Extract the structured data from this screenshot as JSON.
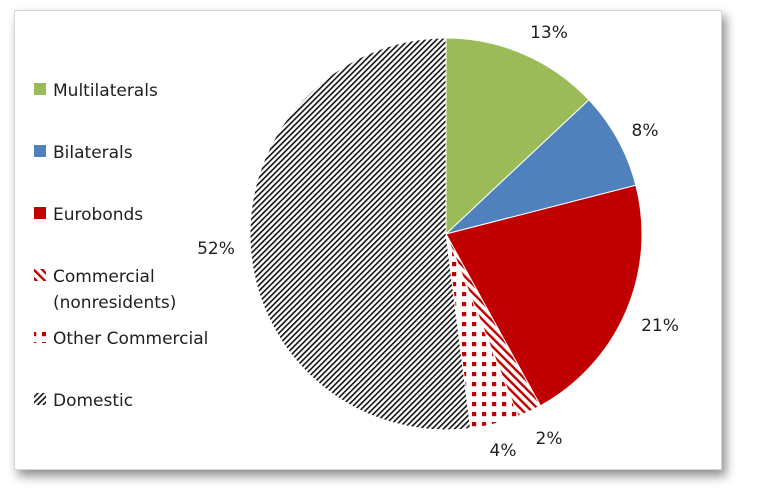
{
  "chart_data": {
    "type": "pie",
    "title": "",
    "legend_position": "left",
    "start_angle_deg": 0,
    "direction": "clockwise",
    "slices": [
      {
        "name": "Multilaterals",
        "legend_lines": [
          "Multilaterals"
        ],
        "value": 13,
        "label": "13%",
        "color": "#9bbb59",
        "pattern": "solid"
      },
      {
        "name": "Bilaterals",
        "legend_lines": [
          "Bilaterals"
        ],
        "value": 8,
        "label": "8%",
        "color": "#4f81bd",
        "pattern": "solid"
      },
      {
        "name": "Eurobonds",
        "legend_lines": [
          "Eurobonds"
        ],
        "value": 21,
        "label": "21%",
        "color": "#c00000",
        "pattern": "solid"
      },
      {
        "name": "Commercial (nonresidents)",
        "legend_lines": [
          "Commercial",
          "(nonresidents)"
        ],
        "value": 2,
        "label": "2%",
        "color": "#c00000",
        "pattern": "diagonal-stripes"
      },
      {
        "name": "Other Commercial",
        "legend_lines": [
          "Other Commercial"
        ],
        "value": 4,
        "label": "4%",
        "color": "#c00000",
        "pattern": "dots"
      },
      {
        "name": "Domestic",
        "legend_lines": [
          "Domestic"
        ],
        "value": 52,
        "label": "52%",
        "color": "#000000",
        "pattern": "diagonal-hatch"
      }
    ]
  }
}
